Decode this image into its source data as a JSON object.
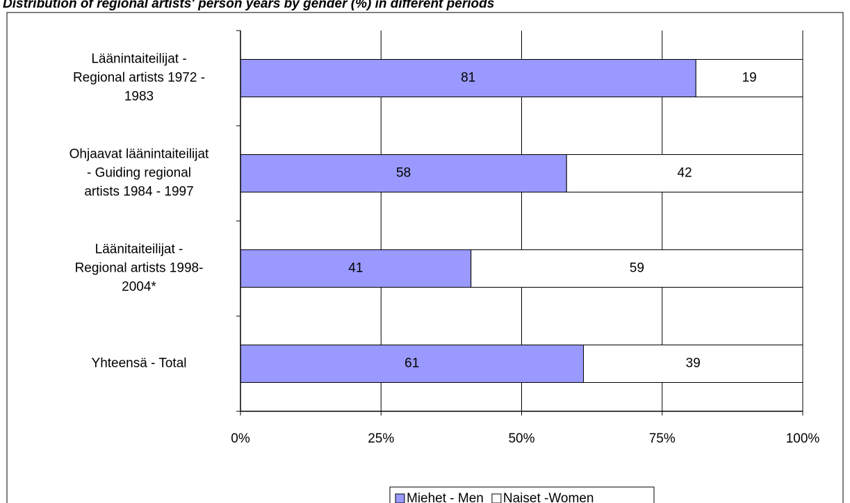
{
  "chart_data": {
    "type": "stacked_bar_horizontal",
    "title": "Distribution of regional artists' person years by gender (%) in different periods",
    "categories": [
      "Läänintaiteilijat -\nRegional artists 1972 -\n1983",
      "Ohjaavat läänintaiteilijat\n- Guiding regional\nartists 1984 - 1997",
      "Läänitaiteilijat -\nRegional artists  1998-\n2004*",
      "Yhteensä - Total"
    ],
    "series": [
      {
        "name": "Miehet - Men",
        "color": "#9999ff",
        "values": [
          81,
          58,
          41,
          61
        ]
      },
      {
        "name": "Naiset -Women",
        "color": "#ffffff",
        "values": [
          19,
          42,
          59,
          39
        ]
      }
    ],
    "xlim": [
      0,
      100
    ],
    "xticks": [
      {
        "value": 0,
        "label": "0%"
      },
      {
        "value": 25,
        "label": "25%"
      },
      {
        "value": 50,
        "label": "50%"
      },
      {
        "value": 75,
        "label": "75%"
      },
      {
        "value": 100,
        "label": "100%"
      }
    ],
    "grid": true,
    "legend": "bottom"
  }
}
